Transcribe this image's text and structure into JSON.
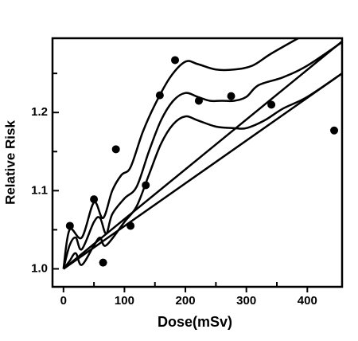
{
  "chart_data": {
    "type": "scatter",
    "xlabel": "Dose(mSv)",
    "ylabel": "Relative Risk",
    "xlim": [
      -18,
      457
    ],
    "ylim": [
      0.977,
      1.295
    ],
    "xticks": [
      0,
      100,
      200,
      300,
      400
    ],
    "xminorticks": [
      50,
      150,
      250,
      350
    ],
    "yticks": [
      {
        "value": 1,
        "label": "1.0"
      },
      1.1,
      1.2
    ],
    "yminorticks": [
      1.05,
      1.15,
      1.25
    ],
    "color": "#000000",
    "points": {
      "x": [
        10.5,
        50,
        65,
        86,
        110,
        135,
        158,
        183,
        222,
        275,
        341,
        444
      ],
      "values": [
        1.055,
        1.089,
        1.008,
        1.153,
        1.055,
        1.107,
        1.222,
        1.267,
        1.215,
        1.221,
        1.21,
        1.177
      ]
    },
    "lines": [
      {
        "x": [
          0,
          457
        ],
        "values": [
          1.0,
          1.291
        ]
      },
      {
        "x": [
          0,
          457
        ],
        "values": [
          1.0,
          1.25
        ]
      },
      {
        "x": [
          0,
          10,
          30,
          50,
          65,
          80,
          95,
          110,
          130,
          150,
          175,
          200,
          220,
          250,
          280,
          310,
          340,
          385
        ],
        "values": [
          1.0,
          1.05,
          1.04,
          1.085,
          1.065,
          1.1,
          1.12,
          1.13,
          1.175,
          1.21,
          1.245,
          1.265,
          1.262,
          1.255,
          1.255,
          1.26,
          1.275,
          1.295
        ]
      },
      {
        "x": [
          0,
          10,
          20,
          30,
          50,
          60,
          70,
          80,
          100,
          120,
          140,
          160,
          180,
          200,
          220,
          240,
          260,
          280,
          300,
          320,
          360,
          400,
          457
        ],
        "values": [
          1.0,
          1.03,
          1.04,
          1.025,
          1.06,
          1.065,
          1.045,
          1.07,
          1.09,
          1.105,
          1.15,
          1.19,
          1.215,
          1.225,
          1.22,
          1.215,
          1.215,
          1.215,
          1.22,
          1.235,
          1.245,
          1.26,
          1.29
        ]
      },
      {
        "x": [
          0,
          10,
          20,
          30,
          50,
          60,
          70,
          100,
          120,
          140,
          160,
          180,
          200,
          220,
          250,
          280,
          300,
          330,
          360,
          400,
          457
        ],
        "values": [
          1.0,
          1.01,
          1.02,
          1.005,
          1.03,
          1.04,
          1.03,
          1.06,
          1.08,
          1.12,
          1.16,
          1.185,
          1.195,
          1.19,
          1.182,
          1.18,
          1.18,
          1.19,
          1.205,
          1.22,
          1.25
        ]
      }
    ]
  }
}
